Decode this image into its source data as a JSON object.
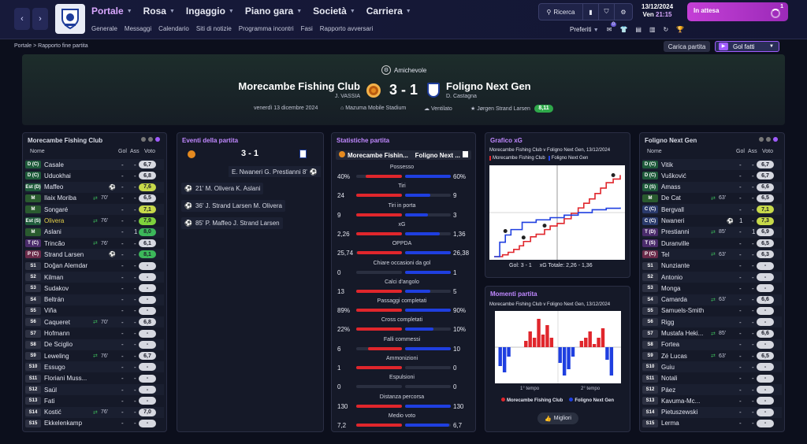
{
  "nav": {
    "back": "‹",
    "forward": "›",
    "main": [
      "Portale",
      "Rosa",
      "Ingaggio",
      "Piano gara",
      "Società",
      "Carriera"
    ],
    "sub": [
      "Generale",
      "Messaggi",
      "Calendario",
      "Siti di notizie",
      "Programma incontri",
      "Fasi",
      "Rapporto avversari"
    ],
    "search": "Ricerca",
    "date": "13/12/2024",
    "day": "Ven",
    "time": "21:15",
    "status": "In attesa",
    "notif": "1",
    "preferiti": "Preferiti",
    "fav_badge": "0"
  },
  "breadcrumb": {
    "home": "Portale",
    "page": "Rapporto fine partita"
  },
  "actions": {
    "load": "Carica partita",
    "goals": "Gol fatti"
  },
  "match": {
    "competition": "Amichevole",
    "home": "Morecambe Fishing Club",
    "away": "Foligno Next Gen",
    "home_manager": "J. VASSIA",
    "away_manager": "D. Castagna",
    "score": "3 - 1",
    "date": "venerdì 13 dicembre 2024",
    "stadium": "Mazuma Mobile Stadium",
    "weather": "Ventilato",
    "referee": "Jørgen Strand Larsen",
    "ref_rating": "8,11"
  },
  "home_panel": {
    "title": "Morecambe Fishing Club",
    "cols": {
      "name": "Nome",
      "gol": "Gol",
      "ass": "Ass",
      "voto": "Voto"
    },
    "players": [
      {
        "pos": "D (C)",
        "name": "Casale",
        "gol": "-",
        "ass": "-",
        "voto": "6,7",
        "pc": "#1f5b3b",
        "vc": "#d6d8e0"
      },
      {
        "pos": "D (C)",
        "name": "Uduokhai",
        "gol": "-",
        "ass": "-",
        "voto": "6,8",
        "pc": "#1f5b3b",
        "vc": "#d6d8e0"
      },
      {
        "pos": "Est (D)",
        "name": "Maffeo",
        "gol": "-",
        "ass": "-",
        "voto": "7,6",
        "pc": "#1f5b3b",
        "vc": "#c7d94a",
        "icon": "goal"
      },
      {
        "pos": "M",
        "name": "Ilaix Moriba",
        "gol": "-",
        "ass": "-",
        "voto": "6,5",
        "pc": "#2a5b2f",
        "vc": "#d6d8e0",
        "sub": "70'"
      },
      {
        "pos": "M",
        "name": "Songaré",
        "gol": "-",
        "ass": "-",
        "voto": "7,1",
        "pc": "#2a5b2f",
        "vc": "#c7d94a"
      },
      {
        "pos": "Est (S)",
        "name": "Olivera",
        "gol": "-",
        "ass": "-",
        "voto": "7,9",
        "pc": "#1f5b3b",
        "vc": "#7dd13c",
        "sub": "76'",
        "hl": true
      },
      {
        "pos": "M",
        "name": "Aslani",
        "gol": "-",
        "ass": "1",
        "voto": "8,0",
        "pc": "#2a5b2f",
        "vc": "#3cb85a"
      },
      {
        "pos": "T (C)",
        "name": "Trincão",
        "gol": "-",
        "ass": "-",
        "voto": "6,1",
        "pc": "#4a2b6b",
        "vc": "#d6d8e0",
        "sub": "76'"
      },
      {
        "pos": "P (C)",
        "name": "Strand Larsen",
        "gol": "-",
        "ass": "-",
        "voto": "8,1",
        "pc": "#6b2b4a",
        "vc": "#3cb85a",
        "icon": "goal"
      },
      {
        "pos": "S1",
        "name": "Doğan Alemdar",
        "gol": "-",
        "ass": "-",
        "voto": "-",
        "pc": "#2d3142",
        "vc": "#d6d8e0"
      },
      {
        "pos": "S2",
        "name": "Kilman",
        "gol": "-",
        "ass": "-",
        "voto": "-",
        "pc": "#2d3142",
        "vc": "#d6d8e0"
      },
      {
        "pos": "S3",
        "name": "Sudakov",
        "gol": "-",
        "ass": "-",
        "voto": "-",
        "pc": "#2d3142",
        "vc": "#d6d8e0"
      },
      {
        "pos": "S4",
        "name": "Beltrán",
        "gol": "-",
        "ass": "-",
        "voto": "-",
        "pc": "#2d3142",
        "vc": "#d6d8e0"
      },
      {
        "pos": "S5",
        "name": "Viña",
        "gol": "-",
        "ass": "-",
        "voto": "-",
        "pc": "#2d3142",
        "vc": "#d6d8e0"
      },
      {
        "pos": "S6",
        "name": "Caqueret",
        "gol": "-",
        "ass": "-",
        "voto": "6,8",
        "pc": "#2d3142",
        "vc": "#d6d8e0",
        "sub": "70'"
      },
      {
        "pos": "S7",
        "name": "Hofmann",
        "gol": "-",
        "ass": "-",
        "voto": "-",
        "pc": "#2d3142",
        "vc": "#d6d8e0"
      },
      {
        "pos": "S8",
        "name": "De Sciglio",
        "gol": "-",
        "ass": "-",
        "voto": "-",
        "pc": "#2d3142",
        "vc": "#d6d8e0"
      },
      {
        "pos": "S9",
        "name": "Leweling",
        "gol": "-",
        "ass": "-",
        "voto": "6,7",
        "pc": "#2d3142",
        "vc": "#d6d8e0",
        "sub": "76'"
      },
      {
        "pos": "S10",
        "name": "Essugo",
        "gol": "-",
        "ass": "-",
        "voto": "-",
        "pc": "#2d3142",
        "vc": "#d6d8e0"
      },
      {
        "pos": "S11",
        "name": "Floriani Muss...",
        "gol": "-",
        "ass": "-",
        "voto": "-",
        "pc": "#2d3142",
        "vc": "#d6d8e0"
      },
      {
        "pos": "S12",
        "name": "Saúl",
        "gol": "-",
        "ass": "-",
        "voto": "-",
        "pc": "#2d3142",
        "vc": "#d6d8e0"
      },
      {
        "pos": "S13",
        "name": "Fati",
        "gol": "-",
        "ass": "-",
        "voto": "-",
        "pc": "#2d3142",
        "vc": "#d6d8e0"
      },
      {
        "pos": "S14",
        "name": "Kostić",
        "gol": "-",
        "ass": "-",
        "voto": "7,0",
        "pc": "#2d3142",
        "vc": "#d6d8e0",
        "sub": "76'"
      },
      {
        "pos": "S15",
        "name": "Ekkelenkamp",
        "gol": "-",
        "ass": "-",
        "voto": "-",
        "pc": "#2d3142",
        "vc": "#d6d8e0"
      }
    ]
  },
  "away_panel": {
    "title": "Foligno Next Gen",
    "cols": {
      "name": "Nome",
      "gol": "Gol",
      "ass": "Ass",
      "voto": "Voto"
    },
    "players": [
      {
        "pos": "D (C)",
        "name": "Vitik",
        "gol": "-",
        "ass": "-",
        "voto": "6,7",
        "pc": "#1f5b3b",
        "vc": "#d6d8e0"
      },
      {
        "pos": "D (C)",
        "name": "Vušković",
        "gol": "-",
        "ass": "-",
        "voto": "6,7",
        "pc": "#1f5b3b",
        "vc": "#d6d8e0"
      },
      {
        "pos": "D (S)",
        "name": "Amass",
        "gol": "-",
        "ass": "-",
        "voto": "6,6",
        "pc": "#1f5b3b",
        "vc": "#d6d8e0"
      },
      {
        "pos": "M",
        "name": "De Cat",
        "gol": "-",
        "ass": "-",
        "voto": "6,5",
        "pc": "#2a5b2f",
        "vc": "#d6d8e0",
        "sub": "63'"
      },
      {
        "pos": "C (C)",
        "name": "Bergvall",
        "gol": "-",
        "ass": "-",
        "voto": "7,1",
        "pc": "#2a3a6b",
        "vc": "#c7d94a"
      },
      {
        "pos": "C (C)",
        "name": "Nwaneri",
        "gol": "1",
        "ass": "-",
        "voto": "7,3",
        "pc": "#2a3a6b",
        "vc": "#c7d94a",
        "icon": "goal"
      },
      {
        "pos": "T (D)",
        "name": "Prestianni",
        "gol": "-",
        "ass": "1",
        "voto": "6,9",
        "pc": "#4a2b6b",
        "vc": "#d6d8e0",
        "sub": "85'"
      },
      {
        "pos": "T (S)",
        "name": "Duranville",
        "gol": "-",
        "ass": "-",
        "voto": "6,5",
        "pc": "#4a2b6b",
        "vc": "#d6d8e0"
      },
      {
        "pos": "P (C)",
        "name": "Tel",
        "gol": "-",
        "ass": "-",
        "voto": "6,3",
        "pc": "#6b2b4a",
        "vc": "#d6d8e0",
        "sub": "63'"
      },
      {
        "pos": "S1",
        "name": "Nunziante",
        "gol": "-",
        "ass": "-",
        "voto": "-",
        "pc": "#2d3142",
        "vc": "#d6d8e0"
      },
      {
        "pos": "S2",
        "name": "Antonio",
        "gol": "-",
        "ass": "-",
        "voto": "-",
        "pc": "#2d3142",
        "vc": "#d6d8e0"
      },
      {
        "pos": "S3",
        "name": "Monga",
        "gol": "-",
        "ass": "-",
        "voto": "-",
        "pc": "#2d3142",
        "vc": "#d6d8e0"
      },
      {
        "pos": "S4",
        "name": "Camarda",
        "gol": "-",
        "ass": "-",
        "voto": "6,6",
        "pc": "#2d3142",
        "vc": "#d6d8e0",
        "sub": "63'"
      },
      {
        "pos": "S5",
        "name": "Samuels-Smith",
        "gol": "-",
        "ass": "-",
        "voto": "-",
        "pc": "#2d3142",
        "vc": "#d6d8e0"
      },
      {
        "pos": "S6",
        "name": "Rigg",
        "gol": "-",
        "ass": "-",
        "voto": "-",
        "pc": "#2d3142",
        "vc": "#d6d8e0"
      },
      {
        "pos": "S7",
        "name": "Mustafa Heki...",
        "gol": "-",
        "ass": "-",
        "voto": "6,6",
        "pc": "#2d3142",
        "vc": "#d6d8e0",
        "sub": "85'"
      },
      {
        "pos": "S8",
        "name": "Fortea",
        "gol": "-",
        "ass": "-",
        "voto": "-",
        "pc": "#2d3142",
        "vc": "#d6d8e0"
      },
      {
        "pos": "S9",
        "name": "Zé Lucas",
        "gol": "-",
        "ass": "-",
        "voto": "6,5",
        "pc": "#2d3142",
        "vc": "#d6d8e0",
        "sub": "63'"
      },
      {
        "pos": "S10",
        "name": "Guiu",
        "gol": "-",
        "ass": "-",
        "voto": "-",
        "pc": "#2d3142",
        "vc": "#d6d8e0"
      },
      {
        "pos": "S11",
        "name": "Notali",
        "gol": "-",
        "ass": "-",
        "voto": "-",
        "pc": "#2d3142",
        "vc": "#d6d8e0"
      },
      {
        "pos": "S12",
        "name": "Páez",
        "gol": "-",
        "ass": "-",
        "voto": "-",
        "pc": "#2d3142",
        "vc": "#d6d8e0"
      },
      {
        "pos": "S13",
        "name": "Kavuma-Mc...",
        "gol": "-",
        "ass": "-",
        "voto": "-",
        "pc": "#2d3142",
        "vc": "#d6d8e0"
      },
      {
        "pos": "S14",
        "name": "Pietuszewski",
        "gol": "-",
        "ass": "-",
        "voto": "-",
        "pc": "#2d3142",
        "vc": "#d6d8e0"
      },
      {
        "pos": "S15",
        "name": "Lerma",
        "gol": "-",
        "ass": "-",
        "voto": "-",
        "pc": "#2d3142",
        "vc": "#d6d8e0"
      }
    ]
  },
  "events": {
    "title": "Eventi della partita",
    "score": "3 - 1",
    "first": "E. Nwaneri G. Prestianni 8'",
    "items": [
      "21' M. Olivera K. Aslani",
      "36' J. Strand Larsen M. Olivera",
      "85' P. Maffeo J. Strand Larsen"
    ]
  },
  "stats": {
    "title": "Statistiche partita",
    "home": "Morecambe Fishin...",
    "away": "Foligno Next ...",
    "rows": [
      {
        "label": "Possesso",
        "h": "40%",
        "a": "60%",
        "hv": 40,
        "av": 60
      },
      {
        "label": "Tiri",
        "h": "24",
        "a": "9",
        "hv": 24,
        "av": 9
      },
      {
        "label": "Tiri in porta",
        "h": "9",
        "a": "3",
        "hv": 9,
        "av": 3
      },
      {
        "label": "xG",
        "h": "2,26",
        "a": "1,36",
        "hv": 2.26,
        "av": 1.36
      },
      {
        "label": "OPPDA",
        "h": "25,74",
        "a": "26,38",
        "hv": 25.74,
        "av": 26.38
      },
      {
        "label": "Chiare occasioni da gol",
        "h": "0",
        "a": "1",
        "hv": 0,
        "av": 1
      },
      {
        "label": "Calci d'angolo",
        "h": "13",
        "a": "5",
        "hv": 13,
        "av": 5
      },
      {
        "label": "Passaggi completati",
        "h": "89%",
        "a": "90%",
        "hv": 89,
        "av": 90
      },
      {
        "label": "Cross completati",
        "h": "22%",
        "a": "10%",
        "hv": 22,
        "av": 10
      },
      {
        "label": "Falli commessi",
        "h": "6",
        "a": "10",
        "hv": 6,
        "av": 10
      },
      {
        "label": "Ammonizioni",
        "h": "1",
        "a": "0",
        "hv": 1,
        "av": 0
      },
      {
        "label": "Espulsioni",
        "h": "0",
        "a": "0",
        "hv": 0,
        "av": 0
      },
      {
        "label": "Distanza percorsa",
        "h": "130",
        "a": "130",
        "hv": 130,
        "av": 130
      },
      {
        "label": "Medio voto",
        "h": "7,2",
        "a": "6,7",
        "hv": 7.2,
        "av": 6.7
      }
    ]
  },
  "xg_panel": {
    "title": "Grafico xG",
    "subtitle": "Morecambe Fishing Club v Foligno Next Gen, 13/12/2024",
    "legend_home": "Morecambe Fishing Club",
    "legend_away": "Foligno Next Gen",
    "footer_goals": "Gol: 3 - 1",
    "footer_xg": "xG Totale: 2,26 - 1,36"
  },
  "momentum_panel": {
    "title": "Momenti partita",
    "subtitle": "Morecambe Fishing Club v Foligno Next Gen, 13/12/2024",
    "half1": "1° tempo",
    "half2": "2° tempo",
    "legend_home": "Morecambe Fishing Club",
    "legend_away": "Foligno Next Gen",
    "best": "Migliori"
  },
  "colors": {
    "home": "#e0262c",
    "away": "#1f3fe0",
    "accent": "#a05cff"
  },
  "chart_data": [
    {
      "type": "line",
      "title": "Grafico xG",
      "series": [
        {
          "name": "Morecambe Fishing Club",
          "x": [
            0,
            6,
            10,
            14,
            18,
            21,
            26,
            30,
            36,
            40,
            45,
            50,
            55,
            60,
            64,
            68,
            72,
            76,
            80,
            85,
            90
          ],
          "values": [
            0,
            0.05,
            0.12,
            0.2,
            0.3,
            0.42,
            0.55,
            0.62,
            0.75,
            0.85,
            0.92,
            1.05,
            1.2,
            1.35,
            1.48,
            1.6,
            1.75,
            1.9,
            2.05,
            2.15,
            2.26
          ]
        },
        {
          "name": "Foligno Next Gen",
          "x": [
            0,
            4,
            8,
            12,
            20,
            30,
            40,
            50,
            60,
            70,
            80,
            90
          ],
          "values": [
            0,
            0.4,
            0.6,
            0.75,
            0.95,
            1.02,
            1.08,
            1.15,
            1.22,
            1.3,
            1.34,
            1.36
          ]
        }
      ],
      "goals": [
        {
          "team": "Foligno Next Gen",
          "minute": 8
        },
        {
          "team": "Morecambe Fishing Club",
          "minute": 21
        },
        {
          "team": "Morecambe Fishing Club",
          "minute": 36
        },
        {
          "team": "Morecambe Fishing Club",
          "minute": 85
        }
      ],
      "xlim": [
        0,
        90
      ],
      "ylim": [
        0,
        2.4
      ]
    },
    {
      "type": "bar",
      "title": "Momenti partita",
      "x": [
        1,
        2,
        3,
        4,
        5,
        6,
        7,
        8,
        9,
        10,
        11,
        12,
        13,
        14,
        15,
        16,
        17,
        18,
        19,
        20,
        21,
        22,
        23,
        24,
        25,
        26,
        27,
        28
      ],
      "values": [
        -0.6,
        -0.8,
        -0.3,
        0,
        0,
        0,
        0.2,
        0.5,
        0.3,
        0.9,
        0.4,
        0.7,
        0.3,
        0,
        -0.5,
        -0.9,
        -0.7,
        -0.3,
        0,
        0.2,
        0.3,
        0.5,
        0.1,
        0.3,
        0.6,
        -0.4,
        -0.9,
        0
      ],
      "ylim": [
        -1,
        1
      ]
    }
  ]
}
